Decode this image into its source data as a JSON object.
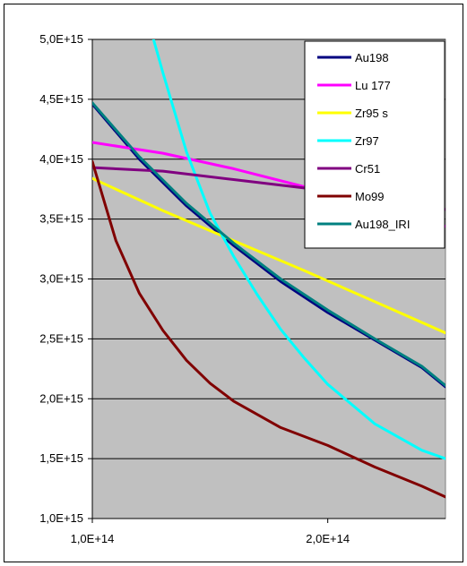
{
  "chart_data": {
    "type": "line",
    "title": "",
    "xlabel": "",
    "ylabel": "",
    "xlim": [
      100000000000000,
      250000000000000
    ],
    "ylim": [
      1000000000000000,
      5000000000000000
    ],
    "x_ticks": [
      100000000000000,
      200000000000000
    ],
    "x_tick_labels": [
      "1,0E+14",
      "2,0E+14"
    ],
    "y_ticks": [
      1000000000000000,
      1500000000000000,
      2000000000000000,
      2500000000000000,
      3000000000000000,
      3500000000000000,
      4000000000000000,
      4500000000000000,
      5000000000000000
    ],
    "y_tick_labels": [
      "1,0E+15",
      "1,5E+15",
      "2,0E+15",
      "2,5E+15",
      "3,0E+15",
      "3,5E+15",
      "4,0E+15",
      "4,5E+15",
      "5,0E+15"
    ],
    "grid": "horizontal",
    "plot_background": "#c0c0c0",
    "legend_position": "top-right",
    "series": [
      {
        "name": "Au198",
        "color": "#000080",
        "points": [
          [
            100000000000000,
            4460000000000000
          ],
          [
            120000000000000,
            4000000000000000
          ],
          [
            140000000000000,
            3610000000000000
          ],
          [
            160000000000000,
            3280000000000000
          ],
          [
            180000000000000,
            2980000000000000
          ],
          [
            200000000000000,
            2720000000000000
          ],
          [
            220000000000000,
            2490000000000000
          ],
          [
            240000000000000,
            2260000000000000
          ],
          [
            250000000000000,
            2100000000000000
          ]
        ]
      },
      {
        "name": "Lu 177",
        "color": "#ff00ff",
        "points": [
          [
            100000000000000,
            4140000000000000
          ],
          [
            130000000000000,
            4050000000000000
          ],
          [
            160000000000000,
            3920000000000000
          ],
          [
            190000000000000,
            3770000000000000
          ],
          [
            220000000000000,
            3600000000000000
          ],
          [
            250000000000000,
            3440000000000000
          ]
        ]
      },
      {
        "name": "Zr95 s",
        "color": "#ffff00",
        "points": [
          [
            100000000000000,
            3840000000000000
          ],
          [
            130000000000000,
            3570000000000000
          ],
          [
            160000000000000,
            3320000000000000
          ],
          [
            190000000000000,
            3070000000000000
          ],
          [
            220000000000000,
            2810000000000000
          ],
          [
            250000000000000,
            2550000000000000
          ]
        ]
      },
      {
        "name": "Zr97",
        "color": "#00ffff",
        "points": [
          [
            126000000000000,
            5000000000000000
          ],
          [
            130000000000000,
            4720000000000000
          ],
          [
            140000000000000,
            4060000000000000
          ],
          [
            150000000000000,
            3550000000000000
          ],
          [
            160000000000000,
            3190000000000000
          ],
          [
            170000000000000,
            2870000000000000
          ],
          [
            180000000000000,
            2580000000000000
          ],
          [
            190000000000000,
            2340000000000000
          ],
          [
            200000000000000,
            2120000000000000
          ],
          [
            220000000000000,
            1790000000000000
          ],
          [
            240000000000000,
            1570000000000000
          ],
          [
            250000000000000,
            1500000000000000
          ]
        ]
      },
      {
        "name": "Cr51",
        "color": "#800080",
        "points": [
          [
            100000000000000,
            3930000000000000
          ],
          [
            130000000000000,
            3900000000000000
          ],
          [
            160000000000000,
            3830000000000000
          ],
          [
            190000000000000,
            3760000000000000
          ],
          [
            220000000000000,
            3680000000000000
          ],
          [
            250000000000000,
            3580000000000000
          ]
        ]
      },
      {
        "name": "Mo99",
        "color": "#800000",
        "points": [
          [
            100000000000000,
            3980000000000000
          ],
          [
            110000000000000,
            3320000000000000
          ],
          [
            120000000000000,
            2880000000000000
          ],
          [
            130000000000000,
            2570000000000000
          ],
          [
            140000000000000,
            2320000000000000
          ],
          [
            150000000000000,
            2130000000000000
          ],
          [
            160000000000000,
            1980000000000000
          ],
          [
            180000000000000,
            1760000000000000
          ],
          [
            200000000000000,
            1610000000000000
          ],
          [
            220000000000000,
            1430000000000000
          ],
          [
            240000000000000,
            1270000000000000
          ],
          [
            250000000000000,
            1180000000000000
          ]
        ]
      },
      {
        "name": "Au198_IRI",
        "color": "#008080",
        "points": [
          [
            100000000000000,
            4470000000000000
          ],
          [
            120000000000000,
            4020000000000000
          ],
          [
            140000000000000,
            3630000000000000
          ],
          [
            160000000000000,
            3300000000000000
          ],
          [
            180000000000000,
            3000000000000000
          ],
          [
            200000000000000,
            2740000000000000
          ],
          [
            220000000000000,
            2500000000000000
          ],
          [
            240000000000000,
            2270000000000000
          ],
          [
            250000000000000,
            2110000000000000
          ]
        ]
      }
    ]
  }
}
